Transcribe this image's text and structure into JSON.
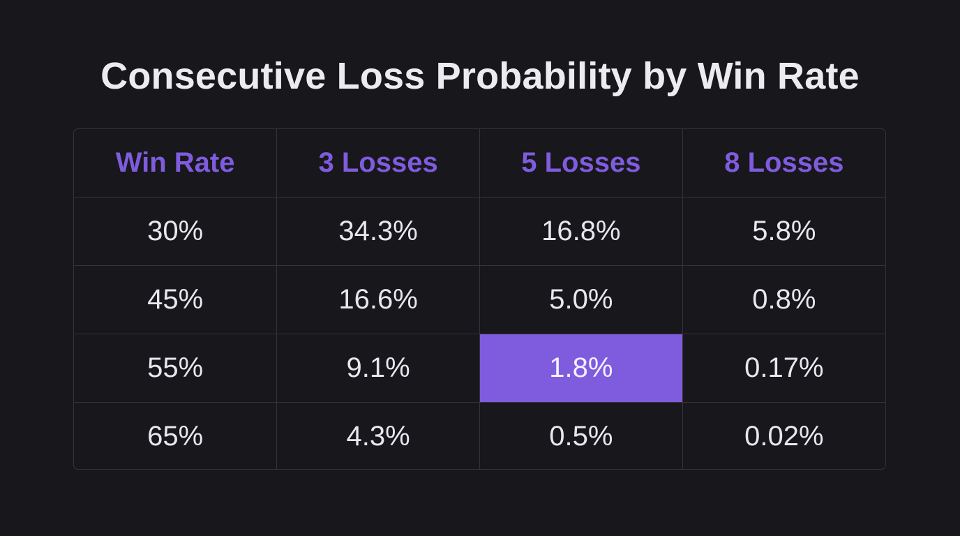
{
  "title": "Consecutive Loss Probability by Win Rate",
  "colors": {
    "background": "#18171c",
    "accent": "#7f5cde",
    "grid": "#34333a",
    "text": "#e8e7ee"
  },
  "chart_data": {
    "type": "table",
    "title": "Consecutive Loss Probability by Win Rate",
    "columns": [
      "Win Rate",
      "3 Losses",
      "5 Losses",
      "8 Losses"
    ],
    "rows": [
      [
        "30%",
        "34.3%",
        "16.8%",
        "5.8%"
      ],
      [
        "45%",
        "16.6%",
        "5.0%",
        "0.8%"
      ],
      [
        "55%",
        "9.1%",
        "1.8%",
        "0.17%"
      ],
      [
        "65%",
        "4.3%",
        "0.5%",
        "0.02%"
      ]
    ],
    "highlighted_cell": {
      "row": 2,
      "column": 2
    }
  }
}
